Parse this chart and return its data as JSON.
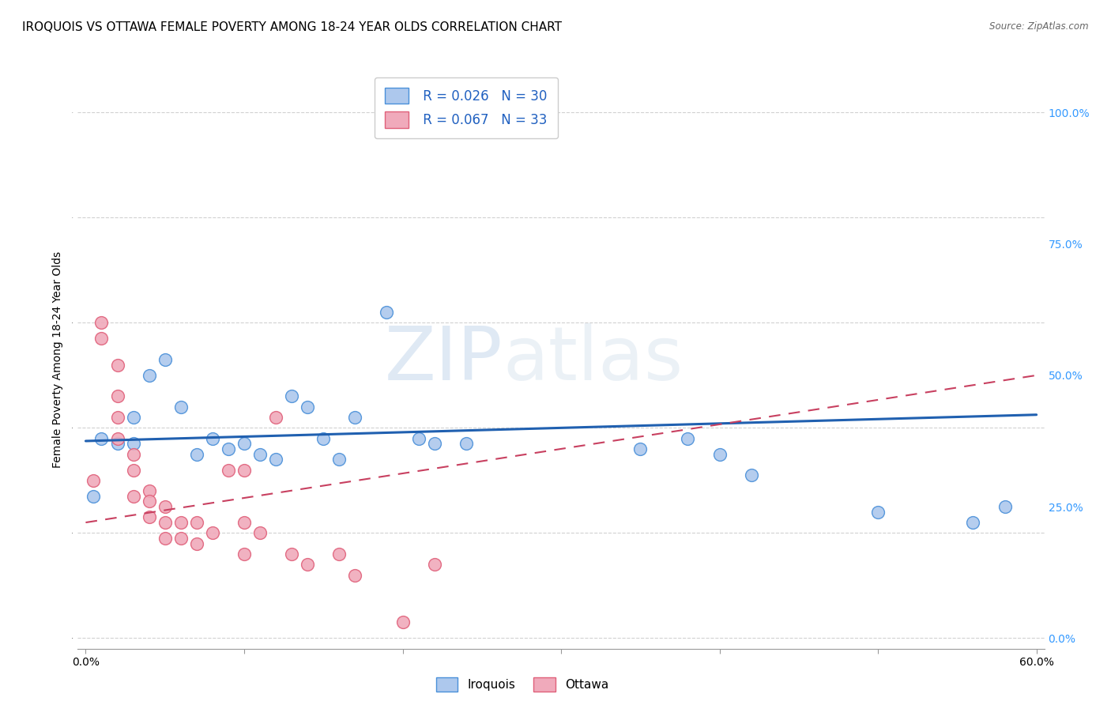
{
  "title": "IROQUOIS VS OTTAWA FEMALE POVERTY AMONG 18-24 YEAR OLDS CORRELATION CHART",
  "source": "Source: ZipAtlas.com",
  "ylabel": "Female Poverty Among 18-24 Year Olds",
  "xlim": [
    -0.005,
    0.605
  ],
  "ylim": [
    -0.02,
    1.08
  ],
  "xticks": [
    0.0,
    0.1,
    0.2,
    0.3,
    0.4,
    0.5,
    0.6
  ],
  "xtick_labels": [
    "0.0%",
    "",
    "",
    "",
    "",
    "",
    "60.0%"
  ],
  "ytick_vals": [
    0.0,
    0.25,
    0.5,
    0.75,
    1.0
  ],
  "ytick_labels": [
    "0.0%",
    "25.0%",
    "50.0%",
    "75.0%",
    "100.0%"
  ],
  "watermark_zip": "ZIP",
  "watermark_atlas": "atlas",
  "legend_line1": " R = 0.026   N = 30",
  "legend_line2": " R = 0.067   N = 33",
  "iroquois_color": "#adc8ed",
  "ottawa_color": "#f0aabb",
  "iroquois_edge_color": "#4a90d9",
  "ottawa_edge_color": "#e0607a",
  "iroquois_line_color": "#2060b0",
  "ottawa_line_color": "#c84060",
  "iroquois_scatter_x": [
    0.005,
    0.01,
    0.02,
    0.03,
    0.03,
    0.04,
    0.05,
    0.06,
    0.07,
    0.08,
    0.09,
    0.1,
    0.11,
    0.12,
    0.13,
    0.14,
    0.15,
    0.16,
    0.17,
    0.19,
    0.21,
    0.22,
    0.24,
    0.35,
    0.38,
    0.4,
    0.42,
    0.5,
    0.56,
    0.58
  ],
  "iroquois_scatter_y": [
    0.27,
    0.38,
    0.37,
    0.42,
    0.37,
    0.5,
    0.53,
    0.44,
    0.35,
    0.38,
    0.36,
    0.37,
    0.35,
    0.34,
    0.46,
    0.44,
    0.38,
    0.34,
    0.42,
    0.62,
    0.38,
    0.37,
    0.37,
    0.36,
    0.38,
    0.35,
    0.31,
    0.24,
    0.22,
    0.25
  ],
  "ottawa_scatter_x": [
    0.005,
    0.01,
    0.01,
    0.02,
    0.02,
    0.02,
    0.02,
    0.03,
    0.03,
    0.03,
    0.04,
    0.04,
    0.04,
    0.05,
    0.05,
    0.05,
    0.06,
    0.06,
    0.07,
    0.07,
    0.08,
    0.09,
    0.1,
    0.1,
    0.1,
    0.11,
    0.12,
    0.13,
    0.14,
    0.16,
    0.17,
    0.2,
    0.22
  ],
  "ottawa_scatter_y": [
    0.3,
    0.6,
    0.57,
    0.52,
    0.46,
    0.42,
    0.38,
    0.35,
    0.32,
    0.27,
    0.28,
    0.26,
    0.23,
    0.25,
    0.22,
    0.19,
    0.22,
    0.19,
    0.22,
    0.18,
    0.2,
    0.32,
    0.32,
    0.22,
    0.16,
    0.2,
    0.42,
    0.16,
    0.14,
    0.16,
    0.12,
    0.03,
    0.14
  ],
  "iroquois_trend_x": [
    0.0,
    0.6
  ],
  "iroquois_trend_y": [
    0.375,
    0.425
  ],
  "ottawa_trend_x": [
    0.0,
    0.6
  ],
  "ottawa_trend_y": [
    0.22,
    0.5
  ],
  "background_color": "#ffffff",
  "grid_color": "#cccccc",
  "title_fontsize": 11,
  "axis_label_fontsize": 10,
  "tick_fontsize": 10,
  "legend_fontsize": 12
}
